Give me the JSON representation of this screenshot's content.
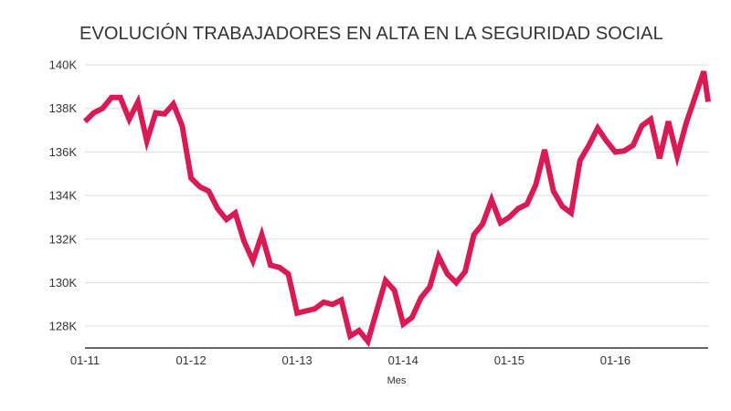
{
  "chart_data": {
    "type": "line",
    "title": "EVOLUCIÓN TRABAJADORES EN ALTA EN LA SEGURIDAD SOCIAL",
    "xlabel": "Mes",
    "ylabel": "",
    "ylim": [
      127000,
      140000
    ],
    "yticks": [
      128000,
      130000,
      132000,
      134000,
      136000,
      138000,
      140000
    ],
    "ytick_labels": [
      "128K",
      "130K",
      "132K",
      "134K",
      "136K",
      "138K",
      "140K"
    ],
    "xticks": [
      "01-11",
      "01-12",
      "01-13",
      "01-14",
      "01-15",
      "01-16"
    ],
    "grid": true,
    "color": "#d81b55",
    "series": [
      {
        "x": [
          "2011-01",
          "2011-02",
          "2011-03",
          "2011-04",
          "2011-05",
          "2011-06",
          "2011-07",
          "2011-08",
          "2011-09",
          "2011-10",
          "2011-11",
          "2011-12",
          "2012-01",
          "2012-02",
          "2012-03",
          "2012-04",
          "2012-05",
          "2012-06",
          "2012-07",
          "2012-08",
          "2012-09",
          "2012-10",
          "2012-11",
          "2012-12",
          "2013-01",
          "2013-02",
          "2013-03",
          "2013-04",
          "2013-05",
          "2013-06",
          "2013-07",
          "2013-08",
          "2013-09",
          "2013-10",
          "2013-11",
          "2013-12",
          "2014-01",
          "2014-02",
          "2014-03",
          "2014-04",
          "2014-05",
          "2014-06",
          "2014-07",
          "2014-08",
          "2014-09",
          "2014-10",
          "2014-11",
          "2014-12",
          "2015-01",
          "2015-02",
          "2015-03",
          "2015-04",
          "2015-05",
          "2015-06",
          "2015-07",
          "2015-08",
          "2015-09",
          "2015-10",
          "2015-11",
          "2015-12",
          "2016-01",
          "2016-02",
          "2016-03",
          "2016-04",
          "2016-05",
          "2016-06",
          "2016-07",
          "2016-08",
          "2016-09",
          "2016-10",
          "2016-11",
          "2016-12"
        ],
        "values": [
          137400,
          137800,
          138000,
          138500,
          138500,
          137500,
          138300,
          136500,
          137800,
          137750,
          138200,
          137200,
          134800,
          134400,
          134200,
          133400,
          132900,
          133200,
          131900,
          131000,
          132200,
          130800,
          130700,
          130400,
          128600,
          128700,
          128800,
          129100,
          129000,
          129200,
          127550,
          127800,
          127300,
          128700,
          130100,
          129650,
          128100,
          128400,
          129300,
          129800,
          131200,
          130400,
          130000,
          130500,
          132200,
          132700,
          133800,
          132750,
          133000,
          133400,
          133600,
          134500,
          136100,
          134200,
          133500,
          133200,
          135600,
          136300,
          137100,
          136500,
          136000,
          136050,
          136300,
          137200,
          137500,
          135700,
          137400,
          135800,
          137300,
          138500,
          139700,
          138300
        ]
      }
    ]
  }
}
